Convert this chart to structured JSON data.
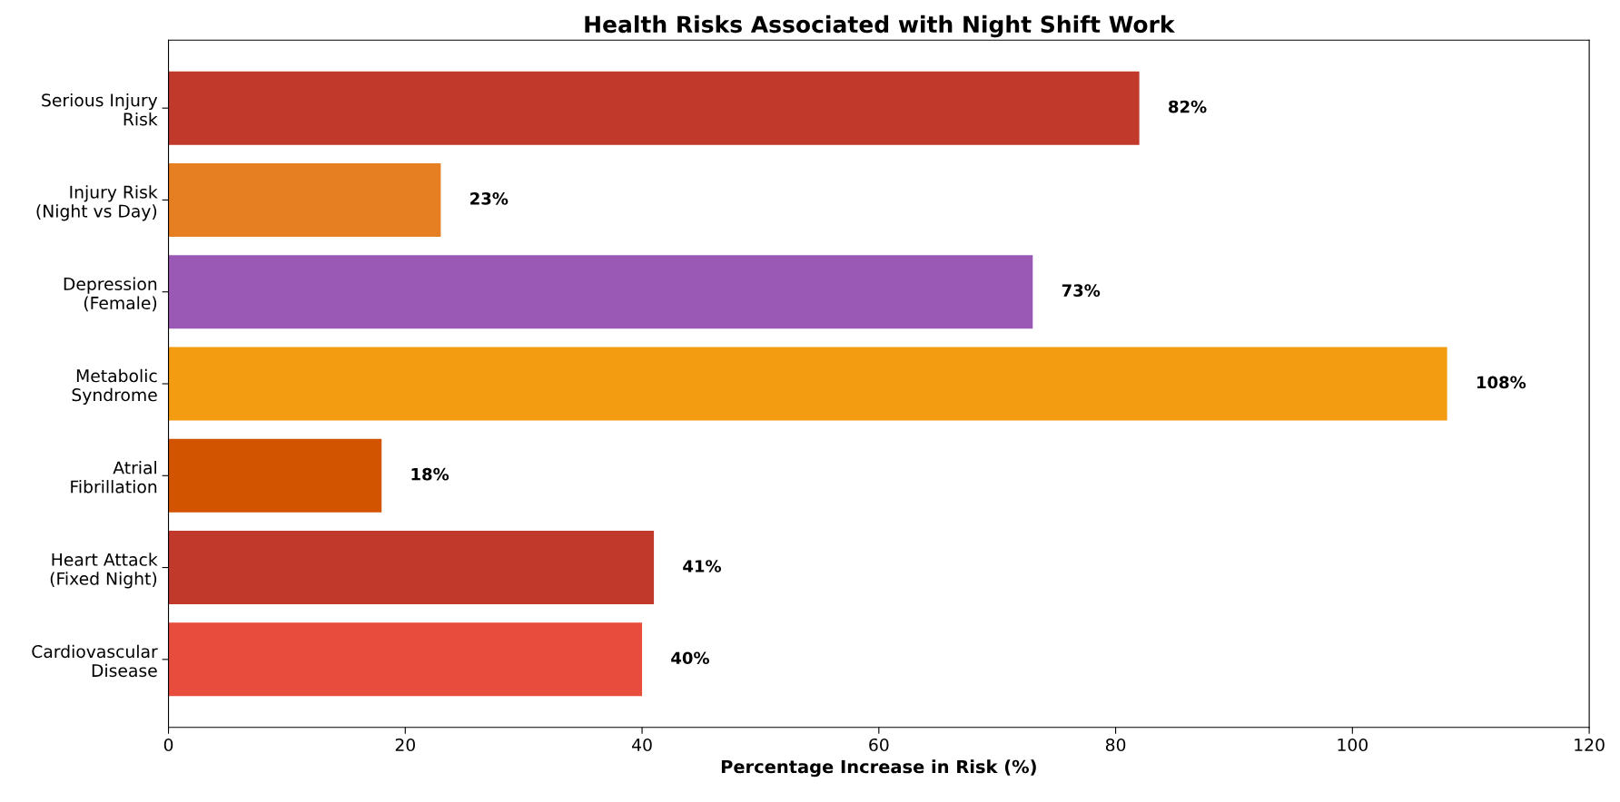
{
  "chart_data": {
    "type": "bar",
    "orientation": "horizontal",
    "title": "Health Risks Associated with Night Shift Work",
    "xlabel": "Percentage Increase in Risk (%)",
    "categories": [
      "Serious Injury\nRisk",
      "Injury Risk\n(Night vs Day)",
      "Depression\n(Female)",
      "Metabolic\nSyndrome",
      "Atrial\nFibrillation",
      "Heart Attack\n(Fixed Night)",
      "Cardiovascular\nDisease"
    ],
    "values": [
      82,
      23,
      73,
      108,
      18,
      41,
      40
    ],
    "colors": [
      "#c0392b",
      "#e67e22",
      "#9b59b6",
      "#f39c12",
      "#d35400",
      "#c0392b",
      "#e74c3c"
    ],
    "value_labels": [
      "82%",
      "23%",
      "73%",
      "108%",
      "18%",
      "41%",
      "40%"
    ],
    "xlim": [
      0,
      120
    ],
    "xticks": [
      0,
      20,
      40,
      60,
      80,
      100,
      120
    ],
    "grid": false
  }
}
